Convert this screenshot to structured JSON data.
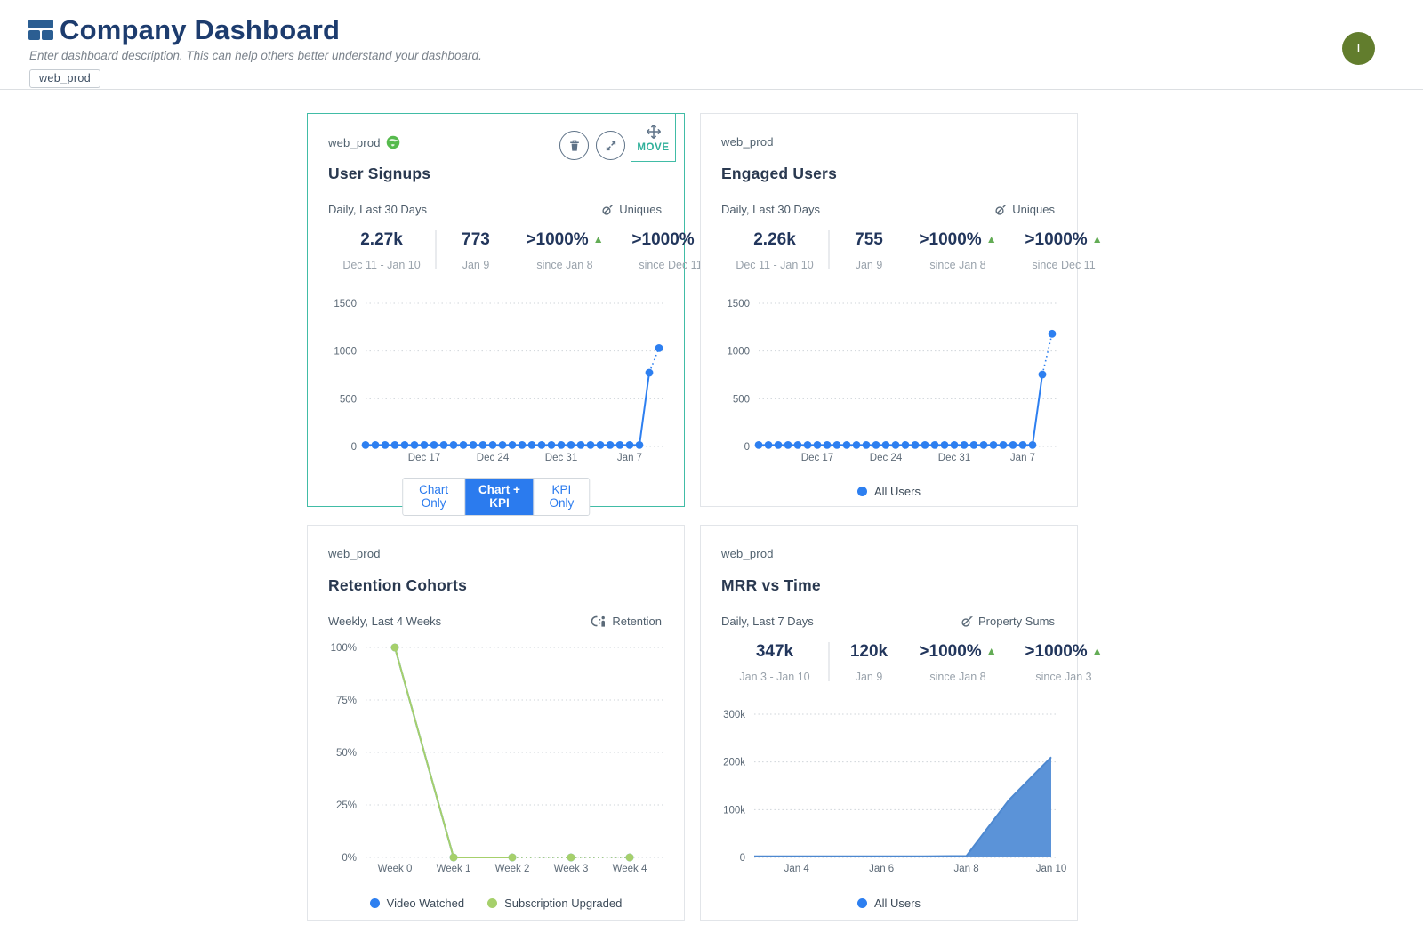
{
  "header": {
    "title": "Company Dashboard",
    "description": "Enter dashboard description. This can help others better understand your dashboard.",
    "tag": "web_prod",
    "avatar_initial": "I"
  },
  "colors": {
    "accent_blue": "#2d7ff0",
    "selected_teal": "#41bca6",
    "delta_green": "#63ac55",
    "retention_green": "#a6d06b",
    "area_blue": "#5b93d8",
    "navy_text": "#22365c",
    "avatar_olive": "#627d2d"
  },
  "cards": {
    "user_signups": {
      "source": "web_prod",
      "title": "User Signups",
      "meta": "Daily, Last 30 Days",
      "metric_label": "Uniques",
      "move_label": "MOVE",
      "kpis": [
        {
          "value": "2.27k",
          "label": "Dec 11 - Jan 10"
        },
        {
          "value": "773",
          "label": "Jan 9"
        },
        {
          "value": ">1000%",
          "label": "since Jan 8"
        },
        {
          "value": ">1000%",
          "label": "since Dec 11"
        }
      ],
      "toggles": [
        "Chart Only",
        "Chart + KPI",
        "KPI Only"
      ],
      "toggle_selected": "Chart + KPI"
    },
    "engaged_users": {
      "source": "web_prod",
      "title": "Engaged Users",
      "meta": "Daily, Last 30 Days",
      "metric_label": "Uniques",
      "kpis": [
        {
          "value": "2.26k",
          "label": "Dec 11 - Jan 10"
        },
        {
          "value": "755",
          "label": "Jan 9"
        },
        {
          "value": ">1000%",
          "label": "since Jan 8"
        },
        {
          "value": ">1000%",
          "label": "since Dec 11"
        }
      ],
      "legend": [
        {
          "label": "All Users"
        }
      ]
    },
    "retention": {
      "source": "web_prod",
      "title": "Retention Cohorts",
      "meta": "Weekly, Last 4 Weeks",
      "metric_label": "Retention",
      "legend": [
        {
          "label": "Video Watched"
        },
        {
          "label": "Subscription Upgraded"
        }
      ]
    },
    "mrr": {
      "source": "web_prod",
      "title": "MRR vs Time",
      "meta": "Daily, Last 7 Days",
      "metric_label": "Property Sums",
      "kpis": [
        {
          "value": "347k",
          "label": "Jan 3 - Jan 10"
        },
        {
          "value": "120k",
          "label": "Jan 9"
        },
        {
          "value": ">1000%",
          "label": "since Jan 8"
        },
        {
          "value": ">1000%",
          "label": "since Jan 3"
        }
      ],
      "legend": [
        {
          "label": "All Users"
        }
      ]
    }
  },
  "chart_data": [
    {
      "id": "user_signups",
      "type": "line",
      "title": "User Signups",
      "x_range": [
        "Dec 11",
        "Jan 10"
      ],
      "ylim": [
        0,
        1500
      ],
      "grid": true,
      "y_ticks": [
        {
          "value": 0,
          "label": "0"
        },
        {
          "value": 500,
          "label": "500"
        },
        {
          "value": 1000,
          "label": "1000"
        },
        {
          "value": 1500,
          "label": "1500"
        }
      ],
      "x_ticks": [
        {
          "index": 6,
          "label": "Dec 17"
        },
        {
          "index": 13,
          "label": "Dec 24"
        },
        {
          "index": 20,
          "label": "Dec 31"
        },
        {
          "index": 27,
          "label": "Jan 7"
        }
      ],
      "x_mode": "point",
      "series": [
        {
          "name": "All Users",
          "color": "#2d7ff0",
          "dots": true,
          "dotted_from": 29,
          "values": [
            15,
            15,
            15,
            15,
            15,
            15,
            15,
            15,
            15,
            15,
            15,
            15,
            15,
            15,
            15,
            15,
            15,
            15,
            15,
            15,
            15,
            15,
            15,
            15,
            15,
            15,
            15,
            15,
            15,
            773,
            1030
          ]
        }
      ]
    },
    {
      "id": "engaged_users",
      "type": "line",
      "title": "Engaged Users",
      "x_range": [
        "Dec 11",
        "Jan 10"
      ],
      "ylim": [
        0,
        1500
      ],
      "grid": true,
      "y_ticks": [
        {
          "value": 0,
          "label": "0"
        },
        {
          "value": 500,
          "label": "500"
        },
        {
          "value": 1000,
          "label": "1000"
        },
        {
          "value": 1500,
          "label": "1500"
        }
      ],
      "x_ticks": [
        {
          "index": 6,
          "label": "Dec 17"
        },
        {
          "index": 13,
          "label": "Dec 24"
        },
        {
          "index": 20,
          "label": "Dec 31"
        },
        {
          "index": 27,
          "label": "Jan 7"
        }
      ],
      "x_mode": "point",
      "series": [
        {
          "name": "All Users",
          "color": "#2d7ff0",
          "dots": true,
          "dotted_from": 29,
          "values": [
            15,
            15,
            15,
            15,
            15,
            15,
            15,
            15,
            15,
            15,
            15,
            15,
            15,
            15,
            15,
            15,
            15,
            15,
            15,
            15,
            15,
            15,
            15,
            15,
            15,
            15,
            15,
            15,
            15,
            755,
            1180
          ]
        }
      ]
    },
    {
      "id": "retention",
      "type": "line",
      "title": "Retention Cohorts",
      "categories": [
        "Week 0",
        "Week 1",
        "Week 2",
        "Week 3",
        "Week 4"
      ],
      "ylim": [
        0,
        100
      ],
      "grid": true,
      "y_ticks": [
        {
          "value": 0,
          "label": "0%"
        },
        {
          "value": 25,
          "label": "25%"
        },
        {
          "value": 50,
          "label": "50%"
        },
        {
          "value": 75,
          "label": "75%"
        },
        {
          "value": 100,
          "label": "100%"
        }
      ],
      "x_ticks": [
        {
          "index": 0,
          "label": "Week 0"
        },
        {
          "index": 1,
          "label": "Week 1"
        },
        {
          "index": 2,
          "label": "Week 2"
        },
        {
          "index": 3,
          "label": "Week 3"
        },
        {
          "index": 4,
          "label": "Week 4"
        }
      ],
      "x_mode": "band",
      "legend_position": "bottom",
      "series": [
        {
          "name": "Video Watched",
          "color": "#2d7ff0",
          "dots": true,
          "dotted_from": 2,
          "values": [
            100,
            0,
            0,
            0,
            0
          ]
        },
        {
          "name": "Subscription Upgraded",
          "color": "#a6d06b",
          "dots": true,
          "dotted_from": 2,
          "values": [
            100,
            0,
            0,
            0,
            0
          ]
        }
      ]
    },
    {
      "id": "mrr",
      "type": "area",
      "title": "MRR vs Time",
      "x_range": [
        "Jan 3",
        "Jan 10"
      ],
      "ylim": [
        0,
        300000
      ],
      "grid": true,
      "y_ticks": [
        {
          "value": 0,
          "label": "0"
        },
        {
          "value": 100000,
          "label": "100k"
        },
        {
          "value": 200000,
          "label": "200k"
        },
        {
          "value": 300000,
          "label": "300k"
        }
      ],
      "x_ticks": [
        {
          "index": 1,
          "label": "Jan 4"
        },
        {
          "index": 3,
          "label": "Jan 6"
        },
        {
          "index": 5,
          "label": "Jan 8"
        },
        {
          "index": 7,
          "label": "Jan 10"
        }
      ],
      "x_mode": "point",
      "legend_position": "bottom",
      "series": [
        {
          "name": "All Users",
          "color": "#4d88d0",
          "fill": "#5b93d8",
          "area": true,
          "values": [
            2500,
            2500,
            2500,
            2500,
            2500,
            3000,
            120000,
            210000
          ]
        }
      ]
    }
  ]
}
